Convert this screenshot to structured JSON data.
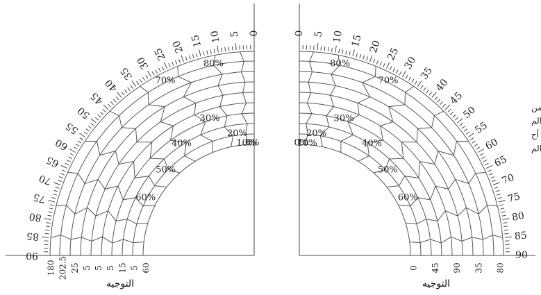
{
  "colors": {
    "line": "#555555",
    "text": "#222222"
  },
  "left_chart": {
    "angle_ticks": [
      "0",
      "5",
      "10",
      "15",
      "20",
      "25",
      "30",
      "35",
      "40",
      "45",
      "50",
      "55",
      "60",
      "65",
      "70",
      "75",
      "80",
      "85",
      "90"
    ],
    "pct_labels": [
      {
        "text": "80%",
        "ring": 8,
        "ang": 12
      },
      {
        "text": "70%",
        "ring": 8,
        "ang": 27
      },
      {
        "text": "60%",
        "ring": 1,
        "ang": 62
      },
      {
        "text": "50%",
        "ring": 1,
        "ang": 46
      },
      {
        "text": "40%",
        "ring": 2,
        "ang": 33
      },
      {
        "text": "30%",
        "ring": 3,
        "ang": 18
      },
      {
        "text": "20%",
        "ring": 1,
        "ang": 8
      },
      {
        "text": "10%",
        "ring": 0,
        "ang": 4
      },
      {
        "text": "0%",
        "ring": 0,
        "ang": 1
      }
    ],
    "bottom_labels": [
      "180",
      "202.5",
      "25",
      "5",
      "5",
      "5",
      "15",
      "5",
      "60"
    ],
    "direction_label": "التوجيه"
  },
  "right_chart": {
    "angle_ticks": [
      "0",
      "5",
      "10",
      "15",
      "20",
      "25",
      "30",
      "35",
      "40",
      "45",
      "50",
      "55",
      "60",
      "65",
      "70",
      "75",
      "80",
      "85",
      "90"
    ],
    "pct_labels": [
      {
        "text": "80%",
        "ring": 8,
        "ang": 12
      },
      {
        "text": "70%",
        "ring": 8,
        "ang": 27
      },
      {
        "text": "60%",
        "ring": 1,
        "ang": 62
      },
      {
        "text": "50%",
        "ring": 1,
        "ang": 46
      },
      {
        "text": "40%",
        "ring": 2,
        "ang": 33
      },
      {
        "text": "30%",
        "ring": 3,
        "ang": 18
      },
      {
        "text": "20%",
        "ring": 1,
        "ang": 8
      },
      {
        "text": "10%",
        "ring": 0,
        "ang": 4
      },
      {
        "text": "0%",
        "ring": 0,
        "ang": 1
      }
    ],
    "bottom_labels": [
      "0",
      "45",
      "90",
      "35",
      "80"
    ],
    "direction_label": "التوجيه"
  },
  "side_note": [
    "من",
    "الم",
    "أح",
    "الم"
  ]
}
